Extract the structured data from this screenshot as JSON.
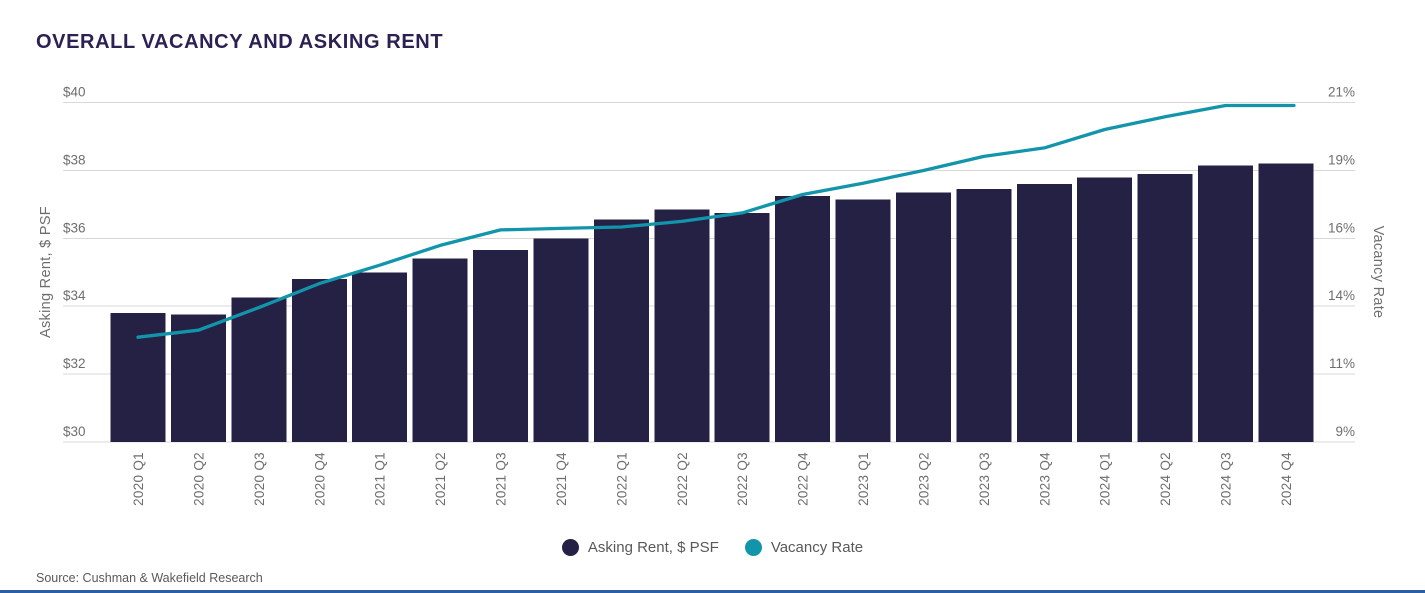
{
  "source": "Source: Cushman & Wakefield Research",
  "colors": {
    "bar": "#242145",
    "line": "#1295ab",
    "title_text": "#2b2153",
    "axis_text": "#6e6e6e",
    "grid_line": "#d9d9d9",
    "legend_text": "#595959",
    "bottom_rule": "#2b5ea7",
    "background": "#ffffff"
  },
  "chart_data": {
    "type": "combo_bar_line",
    "title": "OVERALL VACANCY AND ASKING RENT",
    "categories": [
      "2020 Q1",
      "2020 Q2",
      "2020 Q3",
      "2020 Q4",
      "2021 Q1",
      "2021 Q2",
      "2021 Q3",
      "2021 Q4",
      "2022 Q1",
      "2022 Q2",
      "2022 Q3",
      "2022 Q4",
      "2023 Q1",
      "2023 Q2",
      "2023 Q3",
      "2023 Q4",
      "2024 Q1",
      "2024 Q2",
      "2024 Q3",
      "2024 Q4"
    ],
    "series": [
      {
        "name": "Asking Rent, $ PSF",
        "type": "bar",
        "axis": "left",
        "color": "#242145",
        "values": [
          33.8,
          33.75,
          34.25,
          34.8,
          35.0,
          35.4,
          35.65,
          36.0,
          36.55,
          36.85,
          36.75,
          37.25,
          37.15,
          37.35,
          37.45,
          37.6,
          37.8,
          37.9,
          38.15,
          38.2
        ]
      },
      {
        "name": "Vacancy Rate",
        "type": "line",
        "axis": "right",
        "color": "#1295ab",
        "values": [
          12.7,
          12.95,
          13.75,
          14.6,
          15.25,
          15.95,
          16.5,
          16.55,
          16.6,
          16.8,
          17.1,
          17.75,
          18.15,
          18.6,
          19.1,
          19.4,
          20.05,
          20.5,
          20.9,
          20.9
        ]
      }
    ],
    "left_axis": {
      "title": "Asking Rent, $ PSF",
      "min": 30,
      "max": 40,
      "ticks": [
        {
          "value": 40,
          "label": "$40"
        },
        {
          "value": 38,
          "label": "$38"
        },
        {
          "value": 36,
          "label": "$36"
        },
        {
          "value": 34,
          "label": "$34"
        },
        {
          "value": 32,
          "label": "$32"
        },
        {
          "value": 30,
          "label": "$30"
        }
      ]
    },
    "right_axis": {
      "title": "Vacancy Rate",
      "min": 9,
      "max": 21,
      "ticks": [
        {
          "value": 21,
          "label": "21%"
        },
        {
          "value": 18.6,
          "label": "19%"
        },
        {
          "value": 16.2,
          "label": "16%"
        },
        {
          "value": 13.8,
          "label": "14%"
        },
        {
          "value": 11.4,
          "label": "11%"
        },
        {
          "value": 9,
          "label": "9%"
        }
      ]
    },
    "grid": true,
    "legend_position": "bottom"
  }
}
